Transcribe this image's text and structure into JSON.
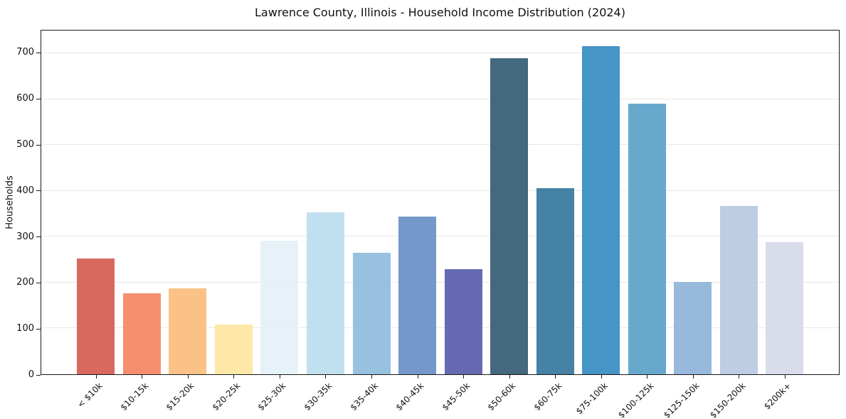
{
  "chart_data": {
    "type": "bar",
    "title": "Lawrence County, Illinois - Household Income Distribution (2024)",
    "xlabel": "",
    "ylabel": "Households",
    "categories": [
      "< $10k",
      "$10-15k",
      "$15-20k",
      "$20-25k",
      "$25-30k",
      "$30-35k",
      "$35-40k",
      "$40-45k",
      "$45-50k",
      "$50-60k",
      "$60-75k",
      "$75-100k",
      "$100-125k",
      "$125-150k",
      "$150-200k",
      "$200k+"
    ],
    "values": [
      253,
      177,
      188,
      108,
      291,
      353,
      265,
      344,
      230,
      690,
      406,
      716,
      590,
      202,
      367,
      288
    ],
    "bar_colors": [
      "#d65c52",
      "#f58764",
      "#fbbd7e",
      "#fde6a0",
      "#e4f1f6",
      "#bcdeee",
      "#8fbcdc",
      "#6b90c7",
      "#5a5fad",
      "#365c73",
      "#37789f",
      "#378dc2",
      "#5ba3c9",
      "#8fb4d8",
      "#b9c9e2",
      "#d6d9e8"
    ],
    "ylim": [
      0,
      750
    ],
    "yticks": [
      0,
      100,
      200,
      300,
      400,
      500,
      600,
      700
    ],
    "grid": "horizontal",
    "legend": "none",
    "background_color": "#ffffff",
    "grid_color": "#e8e8e8",
    "spine_color": "#1a1a1a",
    "text_color": "#111111"
  }
}
